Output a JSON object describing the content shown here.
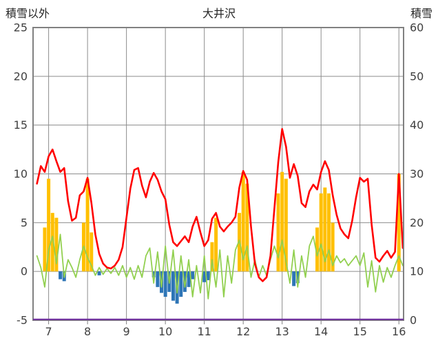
{
  "chart_data": {
    "type": "line",
    "title": "大井沢",
    "legend": false,
    "grid": true,
    "left_axis": {
      "title": "積雪以外",
      "min": -5,
      "max": 25,
      "step": 5,
      "ticks": [
        25,
        20,
        15,
        10,
        5,
        0,
        -5
      ]
    },
    "right_axis": {
      "title": "積雪",
      "min": 0,
      "max": 60,
      "step": 10,
      "ticks": [
        60,
        50,
        40,
        30,
        20,
        10,
        0
      ]
    },
    "x_axis": {
      "min": 6.6,
      "max": 16.12,
      "tick_values": [
        7,
        8,
        9,
        10,
        11,
        12,
        13,
        14,
        15,
        16
      ],
      "tick_labels": [
        "7",
        "8",
        "9",
        "10",
        "11",
        "12",
        "13",
        "14",
        "15",
        "16"
      ]
    },
    "colors": {
      "grid": "#8c8c8c",
      "frame": "#808080",
      "label": "#404040",
      "axis": "#808080",
      "red": "#FF0000",
      "green": "#92D050",
      "yellow": "#FFC000",
      "blue": "#2E75B6",
      "purple": "#7030A0"
    },
    "x": [
      6.7,
      6.8,
      6.9,
      7.0,
      7.1,
      7.2,
      7.3,
      7.4,
      7.5,
      7.6,
      7.7,
      7.8,
      7.9,
      8.0,
      8.1,
      8.2,
      8.3,
      8.4,
      8.5,
      8.6,
      8.7,
      8.8,
      8.9,
      9.0,
      9.1,
      9.2,
      9.3,
      9.4,
      9.5,
      9.6,
      9.7,
      9.8,
      9.9,
      10.0,
      10.1,
      10.2,
      10.3,
      10.4,
      10.5,
      10.6,
      10.7,
      10.8,
      10.9,
      11.0,
      11.1,
      11.2,
      11.3,
      11.4,
      11.5,
      11.6,
      11.7,
      11.8,
      11.9,
      12.0,
      12.1,
      12.2,
      12.3,
      12.4,
      12.5,
      12.6,
      12.7,
      12.8,
      12.9,
      13.0,
      13.1,
      13.2,
      13.3,
      13.4,
      13.5,
      13.6,
      13.7,
      13.8,
      13.9,
      14.0,
      14.1,
      14.2,
      14.3,
      14.4,
      14.5,
      14.6,
      14.7,
      14.8,
      14.9,
      15.0,
      15.1,
      15.2,
      15.3,
      15.4,
      15.5,
      15.6,
      15.7,
      15.8,
      15.9,
      16.0,
      16.1
    ],
    "series": [
      {
        "name": "yellow-bars",
        "type": "bar",
        "axis": "left",
        "color": "#FFC000",
        "values": [
          null,
          null,
          4.5,
          9.5,
          6.0,
          5.5,
          null,
          null,
          null,
          null,
          null,
          null,
          5.0,
          9.5,
          4.0,
          null,
          null,
          null,
          null,
          null,
          null,
          null,
          null,
          null,
          null,
          null,
          null,
          null,
          null,
          null,
          null,
          null,
          null,
          null,
          null,
          null,
          null,
          null,
          null,
          null,
          null,
          null,
          null,
          null,
          null,
          3.0,
          5.5,
          null,
          null,
          null,
          null,
          null,
          6.0,
          10.2,
          9.0,
          null,
          null,
          null,
          null,
          null,
          null,
          null,
          8.0,
          10.2,
          9.5,
          null,
          null,
          null,
          null,
          null,
          null,
          null,
          4.5,
          8.0,
          8.6,
          8.0,
          5.0,
          null,
          null,
          null,
          null,
          null,
          null,
          null,
          null,
          null,
          null,
          null,
          null,
          null,
          null,
          null,
          null,
          10.0,
          null
        ]
      },
      {
        "name": "blue-bars",
        "type": "bar",
        "axis": "left",
        "color": "#2E75B6",
        "values": [
          null,
          null,
          null,
          null,
          null,
          null,
          -0.8,
          -1.0,
          null,
          null,
          null,
          null,
          null,
          null,
          null,
          null,
          -0.4,
          null,
          null,
          null,
          null,
          null,
          null,
          null,
          null,
          null,
          null,
          null,
          null,
          null,
          -0.6,
          -1.6,
          -2.2,
          -2.6,
          -2.1,
          -3.0,
          -3.3,
          -2.6,
          -2.1,
          -1.6,
          -0.8,
          null,
          null,
          -1.1,
          -0.9,
          null,
          null,
          null,
          null,
          null,
          null,
          null,
          null,
          null,
          null,
          null,
          null,
          null,
          null,
          null,
          null,
          null,
          null,
          null,
          null,
          null,
          -1.5,
          -1.2,
          null,
          null,
          null,
          null,
          null,
          null,
          null,
          null,
          null,
          null,
          null,
          null,
          null,
          null,
          null,
          null,
          null,
          null,
          null,
          null,
          null,
          null,
          null,
          null,
          null,
          null,
          null
        ]
      },
      {
        "name": "green-line",
        "type": "line",
        "axis": "left",
        "color": "#92D050",
        "width": 1.8,
        "values": [
          1.6,
          0.4,
          -1.6,
          2.2,
          3.6,
          0.8,
          3.8,
          -0.6,
          1.2,
          0.4,
          -0.6,
          1.2,
          2.6,
          1.4,
          0.6,
          -0.4,
          0.4,
          -0.3,
          0.3,
          -0.2,
          0.4,
          -0.4,
          0.6,
          -0.6,
          0.4,
          -0.8,
          0.6,
          -0.6,
          1.6,
          2.4,
          -1.2,
          2.0,
          -1.6,
          2.6,
          -1.2,
          2.2,
          -2.2,
          1.6,
          -1.6,
          1.2,
          -2.6,
          0.6,
          -2.2,
          1.6,
          -2.8,
          1.2,
          -1.6,
          2.2,
          -2.6,
          1.6,
          -1.2,
          2.2,
          3.2,
          1.2,
          2.6,
          -0.6,
          1.2,
          -0.6,
          0.6,
          -0.4,
          1.2,
          2.6,
          1.4,
          3.2,
          1.0,
          -1.2,
          2.2,
          -1.6,
          1.6,
          -0.6,
          2.6,
          3.6,
          1.6,
          2.8,
          1.0,
          2.2,
          0.6,
          1.6,
          0.9,
          1.3,
          0.6,
          1.1,
          1.6,
          0.6,
          1.9,
          -1.6,
          1.1,
          -2.1,
          0.6,
          -1.1,
          0.4,
          -0.6,
          0.6,
          1.6,
          0.6
        ]
      },
      {
        "name": "red-line",
        "type": "line",
        "axis": "left",
        "color": "#FF0000",
        "width": 2.6,
        "values": [
          9.0,
          10.8,
          10.2,
          11.8,
          12.5,
          11.3,
          10.2,
          10.6,
          7.2,
          5.2,
          5.5,
          7.8,
          8.2,
          9.6,
          7.0,
          3.8,
          1.8,
          0.8,
          0.4,
          0.3,
          0.6,
          1.2,
          2.5,
          5.5,
          8.5,
          10.4,
          10.6,
          8.8,
          7.6,
          9.2,
          10.1,
          9.4,
          8.2,
          7.4,
          4.8,
          3.0,
          2.6,
          3.1,
          3.6,
          3.0,
          4.6,
          5.6,
          4.0,
          2.6,
          3.2,
          5.4,
          6.0,
          4.6,
          4.1,
          4.6,
          5.0,
          5.6,
          8.6,
          10.3,
          9.4,
          4.6,
          0.8,
          -0.6,
          -1.0,
          -0.6,
          1.6,
          6.4,
          11.2,
          14.6,
          12.8,
          9.6,
          11.0,
          9.8,
          7.0,
          6.6,
          8.2,
          8.9,
          8.4,
          10.2,
          11.3,
          10.4,
          7.8,
          5.8,
          4.4,
          3.8,
          3.4,
          5.2,
          7.6,
          9.6,
          9.2,
          9.5,
          4.8,
          1.4,
          1.0,
          1.6,
          2.1,
          1.4,
          2.0,
          10.0,
          2.4
        ]
      },
      {
        "name": "purple-baseline",
        "type": "hline",
        "axis": "right",
        "color": "#7030A0",
        "value": 0
      }
    ]
  }
}
